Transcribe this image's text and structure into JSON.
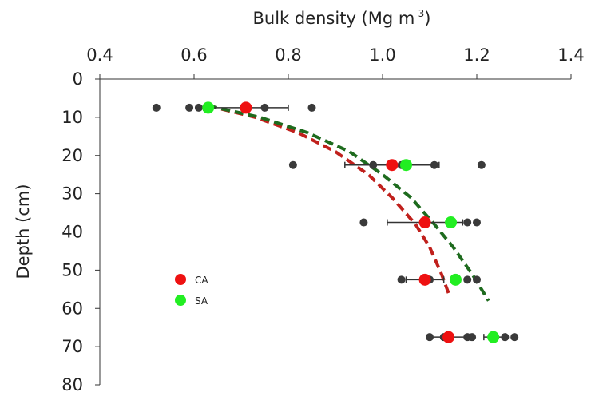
{
  "chart_data": {
    "type": "scatter",
    "title": "",
    "xlabel": "Bulk density (Mg m",
    "xlabel_sup": "-3",
    "xlabel_end": ")",
    "ylabel": "Depth (cm)",
    "xlim": [
      0.4,
      1.4
    ],
    "ylim": [
      0,
      80
    ],
    "y_inverted": true,
    "x_axis_position": "top",
    "x_ticks": [
      "0.4",
      "0.6",
      "0.8",
      "1.0",
      "1.2",
      "1.4"
    ],
    "x_tick_values": [
      0.4,
      0.6,
      0.8,
      1.0,
      1.2,
      1.4
    ],
    "y_ticks": [
      "0",
      "10",
      "20",
      "30",
      "40",
      "50",
      "60",
      "70",
      "80"
    ],
    "y_tick_values": [
      0,
      10,
      20,
      30,
      40,
      50,
      60,
      70,
      80
    ],
    "grid": false,
    "legend_position": "lower-left",
    "individual_points": {
      "color": "#3a3a3a",
      "points": [
        {
          "x": 0.52,
          "y": 7.5
        },
        {
          "x": 0.59,
          "y": 7.5
        },
        {
          "x": 0.61,
          "y": 7.5
        },
        {
          "x": 0.75,
          "y": 7.5
        },
        {
          "x": 0.85,
          "y": 7.5
        },
        {
          "x": 0.81,
          "y": 22.5
        },
        {
          "x": 0.98,
          "y": 22.5
        },
        {
          "x": 1.04,
          "y": 22.5
        },
        {
          "x": 1.11,
          "y": 22.5
        },
        {
          "x": 1.21,
          "y": 22.5
        },
        {
          "x": 0.96,
          "y": 37.5
        },
        {
          "x": 1.09,
          "y": 37.5
        },
        {
          "x": 1.18,
          "y": 37.5
        },
        {
          "x": 1.2,
          "y": 37.5
        },
        {
          "x": 1.04,
          "y": 52.5
        },
        {
          "x": 1.1,
          "y": 52.5
        },
        {
          "x": 1.18,
          "y": 52.5
        },
        {
          "x": 1.2,
          "y": 52.5
        },
        {
          "x": 1.1,
          "y": 67.5
        },
        {
          "x": 1.13,
          "y": 67.5
        },
        {
          "x": 1.18,
          "y": 67.5
        },
        {
          "x": 1.19,
          "y": 67.5
        },
        {
          "x": 1.26,
          "y": 67.5
        },
        {
          "x": 1.28,
          "y": 67.5
        }
      ]
    },
    "series": [
      {
        "name": "CA",
        "color": "#ee1111",
        "fit_color": "#c0201c",
        "points": [
          {
            "x": 0.71,
            "y": 7.5,
            "err": 0.09
          },
          {
            "x": 1.02,
            "y": 22.5,
            "err": 0.1
          },
          {
            "x": 1.09,
            "y": 37.5,
            "err": 0.08
          },
          {
            "x": 1.09,
            "y": 52.5,
            "err": 0.04
          },
          {
            "x": 1.14,
            "y": 67.5,
            "err": 0.04
          }
        ],
        "fit": [
          {
            "x": 0.63,
            "y": 7
          },
          {
            "x": 0.73,
            "y": 10
          },
          {
            "x": 0.82,
            "y": 14
          },
          {
            "x": 0.9,
            "y": 19
          },
          {
            "x": 0.97,
            "y": 25
          },
          {
            "x": 1.02,
            "y": 31
          },
          {
            "x": 1.07,
            "y": 38
          },
          {
            "x": 1.1,
            "y": 44
          },
          {
            "x": 1.125,
            "y": 51
          },
          {
            "x": 1.14,
            "y": 56
          }
        ]
      },
      {
        "name": "SA",
        "color": "#22ee22",
        "fit_color": "#1e6b1e",
        "points": [
          {
            "x": 0.63,
            "y": 7.5,
            "err": 0.0
          },
          {
            "x": 1.05,
            "y": 22.5,
            "err": 0.0
          },
          {
            "x": 1.145,
            "y": 37.5,
            "err": 0.0
          },
          {
            "x": 1.155,
            "y": 52.5,
            "err": 0.0
          },
          {
            "x": 1.235,
            "y": 67.5,
            "err": 0.02
          }
        ],
        "fit": [
          {
            "x": 0.63,
            "y": 7
          },
          {
            "x": 0.74,
            "y": 10
          },
          {
            "x": 0.84,
            "y": 14
          },
          {
            "x": 0.93,
            "y": 19
          },
          {
            "x": 1.0,
            "y": 25
          },
          {
            "x": 1.06,
            "y": 31
          },
          {
            "x": 1.11,
            "y": 38
          },
          {
            "x": 1.15,
            "y": 44
          },
          {
            "x": 1.19,
            "y": 51
          },
          {
            "x": 1.225,
            "y": 58
          }
        ]
      }
    ]
  }
}
